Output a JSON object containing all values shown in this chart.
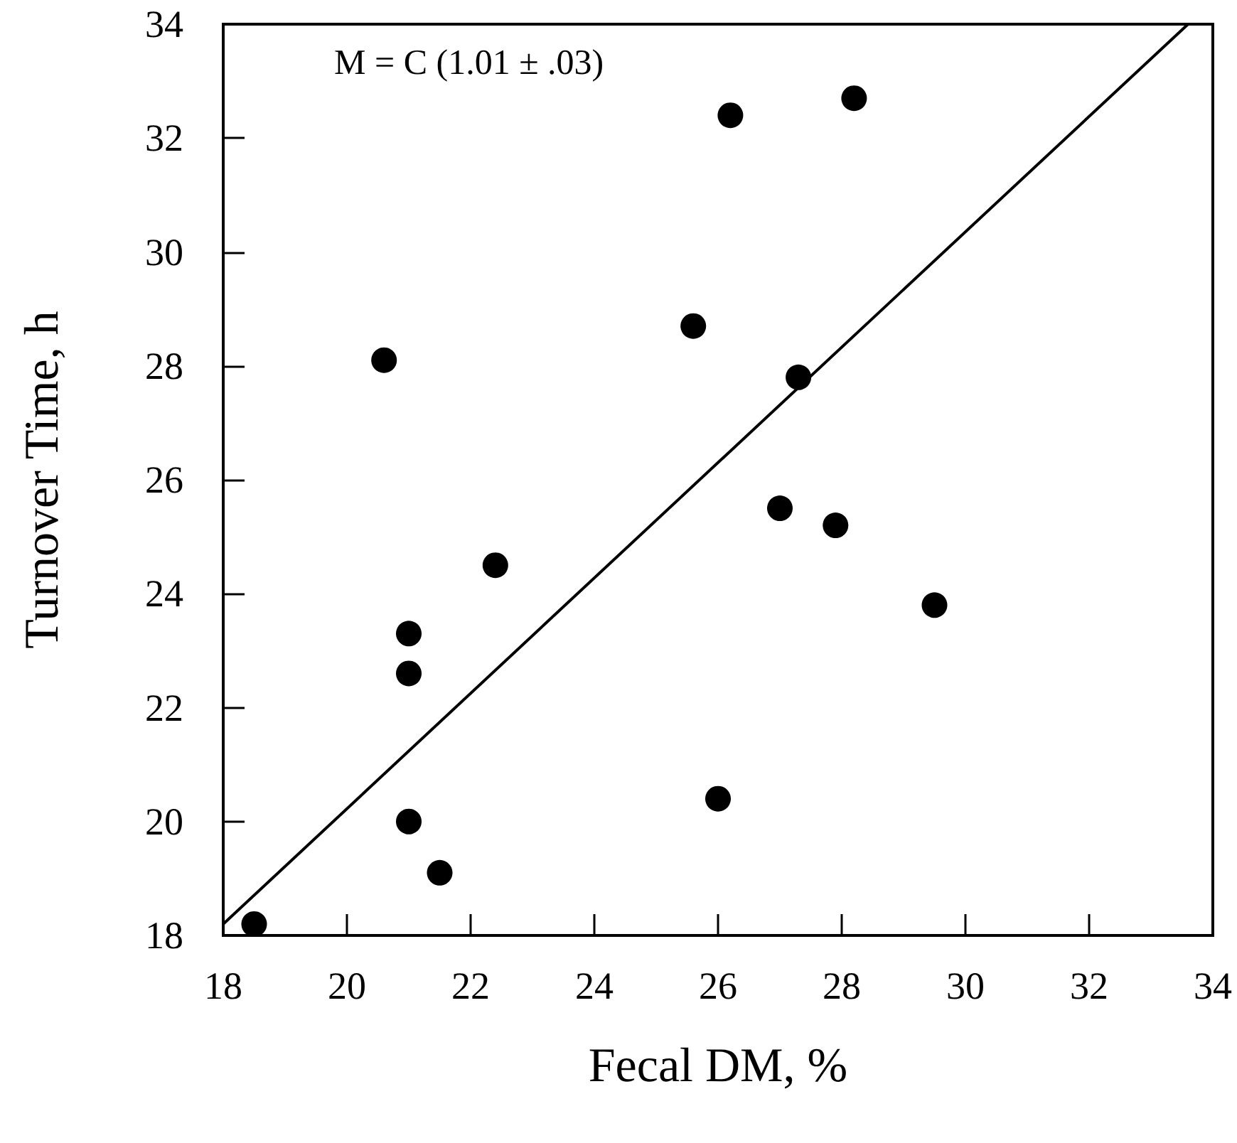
{
  "chart_data": {
    "type": "scatter",
    "xlabel": "Fecal DM, %",
    "ylabel": "Turnover Time, h",
    "annotations": [
      "M = C (1.01 ± .03)"
    ],
    "marker": "circle",
    "xlim": [
      18,
      34
    ],
    "ylim": [
      18,
      34
    ],
    "xticks": [
      18,
      20,
      22,
      24,
      26,
      28,
      30,
      32,
      34
    ],
    "yticks": [
      18,
      20,
      22,
      24,
      26,
      28,
      30,
      32,
      34
    ],
    "series": [
      {
        "color": "#000000",
        "x": [
          18.5,
          21.0,
          21.0,
          21.0,
          21.5,
          22.4,
          20.6,
          25.6,
          26.2,
          28.2,
          27.3,
          27.0,
          27.9,
          29.5,
          26.0
        ],
        "values": [
          18.2,
          23.3,
          22.6,
          20.0,
          19.1,
          24.5,
          28.1,
          28.7,
          32.4,
          32.7,
          27.8,
          25.5,
          25.2,
          23.8,
          20.4
        ]
      },
      {
        "type": "line",
        "color": "#000000",
        "marker": "none",
        "x": [
          18,
          33.6
        ],
        "values": [
          18.2,
          34
        ]
      }
    ]
  }
}
